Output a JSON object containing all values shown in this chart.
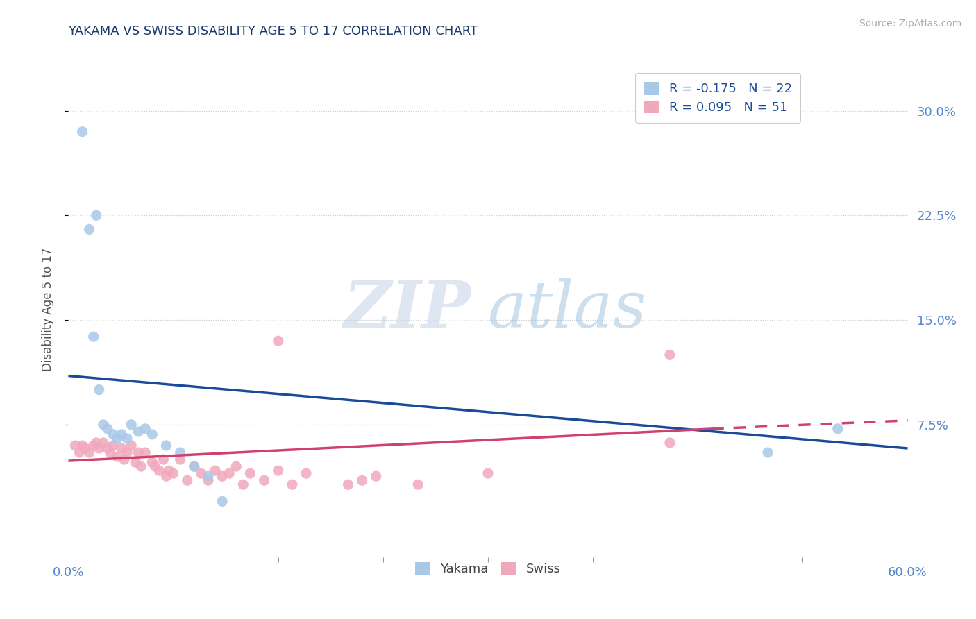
{
  "title": "YAKAMA VS SWISS DISABILITY AGE 5 TO 17 CORRELATION CHART",
  "source": "Source: ZipAtlas.com",
  "ylabel": "Disability Age 5 to 17",
  "xlim": [
    0.0,
    0.6
  ],
  "ylim": [
    -0.02,
    0.335
  ],
  "yticks": [
    0.075,
    0.15,
    0.225,
    0.3
  ],
  "ytick_labels": [
    "7.5%",
    "15.0%",
    "22.5%",
    "30.0%"
  ],
  "xtick_labels": [
    "0.0%",
    "60.0%"
  ],
  "background_color": "#ffffff",
  "legend_r_yakama": "R = -0.175",
  "legend_n_yakama": "N = 22",
  "legend_r_swiss": "R = 0.095",
  "legend_n_swiss": "N = 51",
  "yakama_color": "#a8c8e8",
  "swiss_color": "#f0a8bc",
  "trend_yakama_color": "#1a4a9a",
  "trend_swiss_color": "#d04070",
  "yakama_points": [
    [
      0.01,
      0.285
    ],
    [
      0.015,
      0.215
    ],
    [
      0.02,
      0.225
    ],
    [
      0.018,
      0.138
    ],
    [
      0.022,
      0.1
    ],
    [
      0.025,
      0.075
    ],
    [
      0.028,
      0.072
    ],
    [
      0.032,
      0.068
    ],
    [
      0.035,
      0.065
    ],
    [
      0.038,
      0.068
    ],
    [
      0.042,
      0.065
    ],
    [
      0.045,
      0.075
    ],
    [
      0.05,
      0.07
    ],
    [
      0.055,
      0.072
    ],
    [
      0.06,
      0.068
    ],
    [
      0.07,
      0.06
    ],
    [
      0.08,
      0.055
    ],
    [
      0.09,
      0.045
    ],
    [
      0.1,
      0.038
    ],
    [
      0.11,
      0.02
    ],
    [
      0.55,
      0.072
    ],
    [
      0.5,
      0.055
    ]
  ],
  "swiss_points": [
    [
      0.005,
      0.06
    ],
    [
      0.008,
      0.055
    ],
    [
      0.01,
      0.06
    ],
    [
      0.012,
      0.058
    ],
    [
      0.015,
      0.055
    ],
    [
      0.018,
      0.06
    ],
    [
      0.02,
      0.062
    ],
    [
      0.022,
      0.058
    ],
    [
      0.025,
      0.062
    ],
    [
      0.028,
      0.058
    ],
    [
      0.03,
      0.055
    ],
    [
      0.032,
      0.06
    ],
    [
      0.035,
      0.052
    ],
    [
      0.038,
      0.058
    ],
    [
      0.04,
      0.05
    ],
    [
      0.042,
      0.055
    ],
    [
      0.045,
      0.06
    ],
    [
      0.048,
      0.048
    ],
    [
      0.05,
      0.055
    ],
    [
      0.052,
      0.045
    ],
    [
      0.055,
      0.055
    ],
    [
      0.06,
      0.048
    ],
    [
      0.062,
      0.045
    ],
    [
      0.065,
      0.042
    ],
    [
      0.068,
      0.05
    ],
    [
      0.07,
      0.038
    ],
    [
      0.072,
      0.042
    ],
    [
      0.075,
      0.04
    ],
    [
      0.08,
      0.05
    ],
    [
      0.085,
      0.035
    ],
    [
      0.09,
      0.045
    ],
    [
      0.095,
      0.04
    ],
    [
      0.1,
      0.035
    ],
    [
      0.105,
      0.042
    ],
    [
      0.11,
      0.038
    ],
    [
      0.115,
      0.04
    ],
    [
      0.12,
      0.045
    ],
    [
      0.125,
      0.032
    ],
    [
      0.13,
      0.04
    ],
    [
      0.14,
      0.035
    ],
    [
      0.15,
      0.042
    ],
    [
      0.16,
      0.032
    ],
    [
      0.17,
      0.04
    ],
    [
      0.2,
      0.032
    ],
    [
      0.21,
      0.035
    ],
    [
      0.22,
      0.038
    ],
    [
      0.25,
      0.032
    ],
    [
      0.3,
      0.04
    ],
    [
      0.15,
      0.135
    ],
    [
      0.43,
      0.125
    ],
    [
      0.43,
      0.062
    ]
  ],
  "grid_color": "#cccccc",
  "title_color": "#1a3a6a",
  "axis_label_color": "#555555",
  "tick_label_color": "#5588cc"
}
